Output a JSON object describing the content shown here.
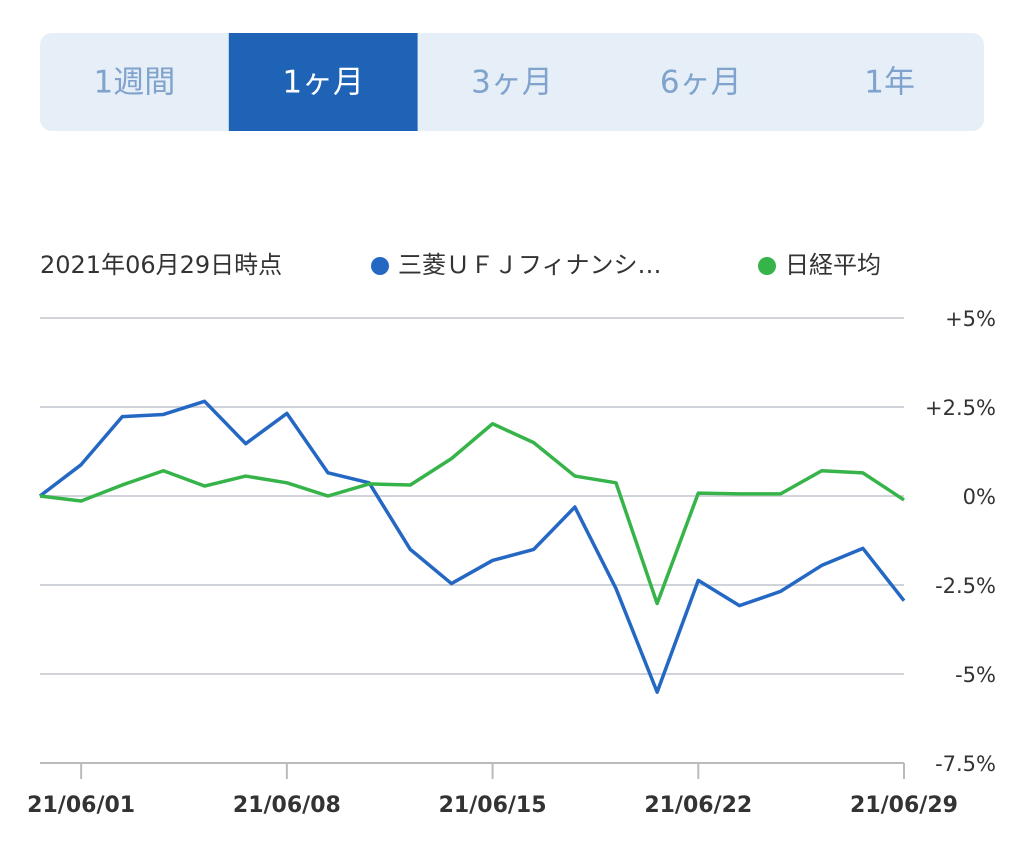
{
  "tabs": [
    "1週間",
    "1ヶ月",
    "3ヶ月",
    "6ヶ月",
    "1年"
  ],
  "selected_tab": 1,
  "chart_data": {
    "type": "line",
    "note": "2021年06月29日時点",
    "x": [
      "21/05/31",
      "21/06/01",
      "21/06/02",
      "21/06/03",
      "21/06/04",
      "21/06/07",
      "21/06/08",
      "21/06/09",
      "21/06/10",
      "21/06/11",
      "21/06/14",
      "21/06/15",
      "21/06/16",
      "21/06/17",
      "21/06/18",
      "21/06/21",
      "21/06/22",
      "21/06/23",
      "21/06/24",
      "21/06/25",
      "21/06/28",
      "21/06/29"
    ],
    "xticks": [
      "21/06/01",
      "21/06/08",
      "21/06/15",
      "21/06/22",
      "21/06/29"
    ],
    "series": [
      {
        "name": "三菱ＵＦＪフィナンシ…",
        "color": "#2468c4",
        "values": [
          0,
          0.88,
          2.23,
          2.29,
          2.66,
          1.47,
          2.32,
          0.65,
          0.37,
          -1.5,
          -2.46,
          -1.81,
          -1.5,
          -0.31,
          -2.6,
          -5.51,
          -2.37,
          -3.08,
          -2.68,
          -1.95,
          -1.47,
          -2.94
        ]
      },
      {
        "name": "日経平均",
        "color": "#36b44a",
        "values": [
          0,
          -0.14,
          0.31,
          0.71,
          0.28,
          0.56,
          0.37,
          0,
          0.34,
          0.31,
          1.05,
          2.03,
          1.5,
          0.56,
          0.37,
          -3.02,
          0.08,
          0.06,
          0.06,
          0.71,
          0.65,
          -0.11
        ]
      }
    ],
    "ylim": [
      -7.5,
      5
    ],
    "yticks": [
      {
        "value": 5,
        "label": "+5%"
      },
      {
        "value": 2.5,
        "label": "+2.5%"
      },
      {
        "value": 0,
        "label": "0%"
      },
      {
        "value": -2.5,
        "label": "-2.5%"
      },
      {
        "value": -5,
        "label": "-5%"
      },
      {
        "value": -7.5,
        "label": "-7.5%"
      }
    ],
    "grid": true
  }
}
